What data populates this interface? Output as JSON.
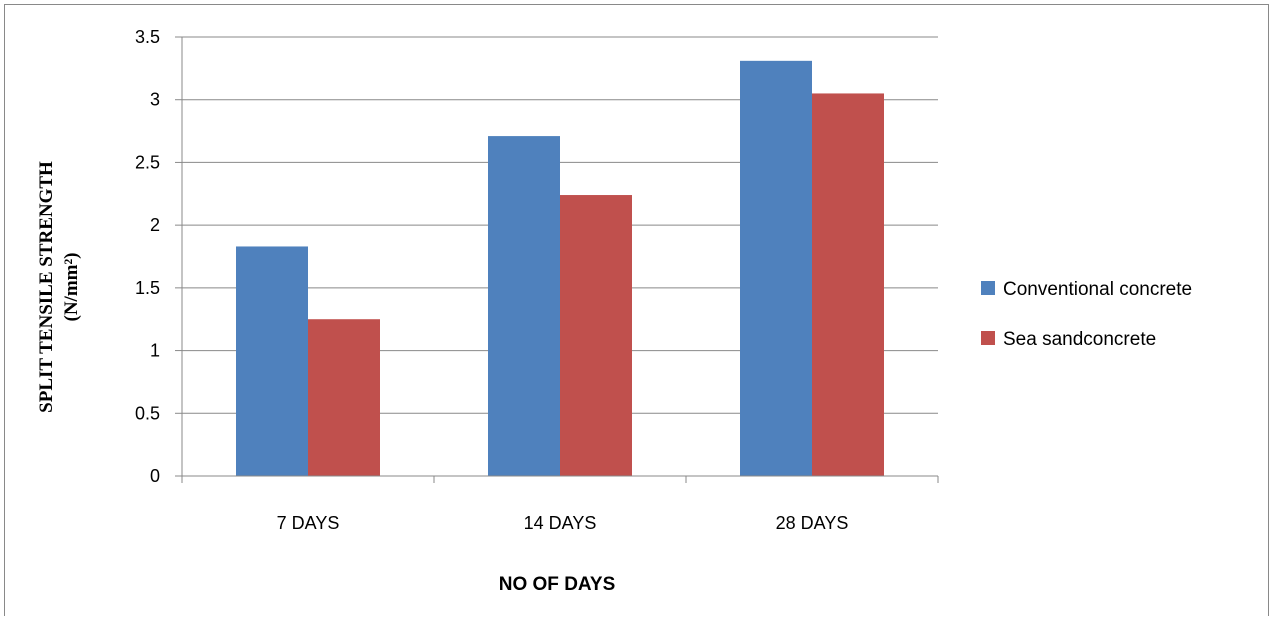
{
  "chart_data": {
    "type": "bar",
    "categories": [
      "7 DAYS",
      "14 DAYS",
      "28 DAYS"
    ],
    "series": [
      {
        "name": "Conventional concrete",
        "values": [
          1.83,
          2.71,
          3.31
        ],
        "color": "#4F81BD"
      },
      {
        "name": "Sea sandconcrete",
        "values": [
          1.25,
          2.24,
          3.05
        ],
        "color": "#C0504D"
      }
    ],
    "xlabel": "NO OF DAYS",
    "ylabel": "SPLIT TENSILE STRENGTH",
    "ylabel_unit": "(N/mm²)",
    "ylim": [
      0,
      3.5
    ],
    "yticks": [
      "0",
      "0.5",
      "1",
      "1.5",
      "2",
      "2.5",
      "3",
      "3.5"
    ],
    "grid": true,
    "legend_position": "right",
    "gridline_color": "#898989"
  }
}
